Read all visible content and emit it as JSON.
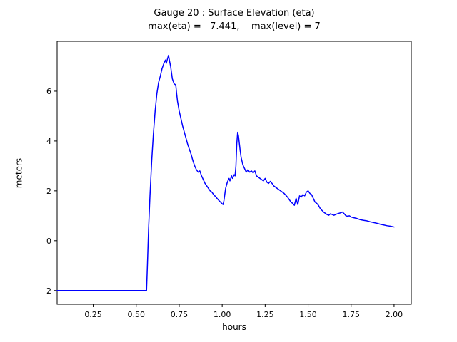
{
  "chart_data": {
    "type": "line",
    "title": "Gauge 20 : Surface Elevation (eta)",
    "subtitle": "max(eta) =   7.441,    max(level) = 7",
    "xlabel": "hours",
    "ylabel": "meters",
    "xlim": [
      0.04,
      2.1
    ],
    "ylim": [
      -2.55,
      8.0
    ],
    "xticks": [
      0.25,
      0.5,
      0.75,
      1.0,
      1.25,
      1.5,
      1.75,
      2.0
    ],
    "xtick_labels": [
      "0.25",
      "0.50",
      "0.75",
      "1.00",
      "1.25",
      "1.50",
      "1.75",
      "2.00"
    ],
    "yticks": [
      -2,
      0,
      2,
      4,
      6
    ],
    "ytick_labels": [
      "−2",
      "0",
      "2",
      "4",
      "6"
    ],
    "grid": false,
    "legend": "none",
    "line_color": "#0000ff",
    "axis_color": "#000000",
    "max_eta": 7.441,
    "max_level": 7,
    "series": [
      {
        "name": "eta",
        "points": [
          [
            0.04,
            -2.0
          ],
          [
            0.1,
            -2.0
          ],
          [
            0.2,
            -2.0
          ],
          [
            0.3,
            -2.0
          ],
          [
            0.4,
            -2.0
          ],
          [
            0.5,
            -2.0
          ],
          [
            0.55,
            -2.0
          ],
          [
            0.56,
            -2.0
          ],
          [
            0.565,
            -1.0
          ],
          [
            0.572,
            0.5
          ],
          [
            0.58,
            1.8
          ],
          [
            0.59,
            3.2
          ],
          [
            0.6,
            4.3
          ],
          [
            0.61,
            5.2
          ],
          [
            0.62,
            5.9
          ],
          [
            0.63,
            6.35
          ],
          [
            0.64,
            6.6
          ],
          [
            0.65,
            6.9
          ],
          [
            0.66,
            7.1
          ],
          [
            0.67,
            7.25
          ],
          [
            0.675,
            7.12
          ],
          [
            0.682,
            7.3
          ],
          [
            0.688,
            7.44
          ],
          [
            0.694,
            7.2
          ],
          [
            0.7,
            7.0
          ],
          [
            0.71,
            6.5
          ],
          [
            0.72,
            6.3
          ],
          [
            0.73,
            6.25
          ],
          [
            0.735,
            5.9
          ],
          [
            0.74,
            5.6
          ],
          [
            0.75,
            5.2
          ],
          [
            0.76,
            4.9
          ],
          [
            0.77,
            4.6
          ],
          [
            0.78,
            4.35
          ],
          [
            0.79,
            4.1
          ],
          [
            0.8,
            3.85
          ],
          [
            0.81,
            3.65
          ],
          [
            0.82,
            3.45
          ],
          [
            0.83,
            3.2
          ],
          [
            0.84,
            3.0
          ],
          [
            0.85,
            2.85
          ],
          [
            0.86,
            2.75
          ],
          [
            0.87,
            2.8
          ],
          [
            0.88,
            2.6
          ],
          [
            0.89,
            2.45
          ],
          [
            0.9,
            2.3
          ],
          [
            0.91,
            2.2
          ],
          [
            0.92,
            2.1
          ],
          [
            0.93,
            2.0
          ],
          [
            0.94,
            1.95
          ],
          [
            0.95,
            1.85
          ],
          [
            0.96,
            1.78
          ],
          [
            0.97,
            1.7
          ],
          [
            0.98,
            1.62
          ],
          [
            0.99,
            1.55
          ],
          [
            1.0,
            1.48
          ],
          [
            1.005,
            1.45
          ],
          [
            1.01,
            1.6
          ],
          [
            1.02,
            2.1
          ],
          [
            1.03,
            2.35
          ],
          [
            1.04,
            2.5
          ],
          [
            1.045,
            2.4
          ],
          [
            1.055,
            2.6
          ],
          [
            1.06,
            2.5
          ],
          [
            1.07,
            2.65
          ],
          [
            1.075,
            2.6
          ],
          [
            1.08,
            3.0
          ],
          [
            1.085,
            3.9
          ],
          [
            1.09,
            4.35
          ],
          [
            1.095,
            4.2
          ],
          [
            1.1,
            3.9
          ],
          [
            1.105,
            3.6
          ],
          [
            1.11,
            3.35
          ],
          [
            1.12,
            3.05
          ],
          [
            1.13,
            2.9
          ],
          [
            1.14,
            2.75
          ],
          [
            1.15,
            2.85
          ],
          [
            1.16,
            2.75
          ],
          [
            1.17,
            2.8
          ],
          [
            1.18,
            2.72
          ],
          [
            1.19,
            2.8
          ],
          [
            1.2,
            2.6
          ],
          [
            1.21,
            2.55
          ],
          [
            1.22,
            2.5
          ],
          [
            1.23,
            2.45
          ],
          [
            1.24,
            2.4
          ],
          [
            1.25,
            2.5
          ],
          [
            1.26,
            2.35
          ],
          [
            1.27,
            2.3
          ],
          [
            1.28,
            2.38
          ],
          [
            1.29,
            2.3
          ],
          [
            1.3,
            2.2
          ],
          [
            1.31,
            2.15
          ],
          [
            1.32,
            2.1
          ],
          [
            1.34,
            2.0
          ],
          [
            1.36,
            1.9
          ],
          [
            1.38,
            1.75
          ],
          [
            1.4,
            1.55
          ],
          [
            1.41,
            1.5
          ],
          [
            1.42,
            1.42
          ],
          [
            1.43,
            1.7
          ],
          [
            1.44,
            1.45
          ],
          [
            1.45,
            1.8
          ],
          [
            1.46,
            1.75
          ],
          [
            1.47,
            1.85
          ],
          [
            1.48,
            1.8
          ],
          [
            1.49,
            1.95
          ],
          [
            1.5,
            2.0
          ],
          [
            1.51,
            1.9
          ],
          [
            1.52,
            1.85
          ],
          [
            1.53,
            1.7
          ],
          [
            1.54,
            1.55
          ],
          [
            1.55,
            1.5
          ],
          [
            1.56,
            1.42
          ],
          [
            1.57,
            1.3
          ],
          [
            1.58,
            1.22
          ],
          [
            1.59,
            1.15
          ],
          [
            1.6,
            1.1
          ],
          [
            1.61,
            1.05
          ],
          [
            1.62,
            1.02
          ],
          [
            1.63,
            1.08
          ],
          [
            1.64,
            1.05
          ],
          [
            1.65,
            1.02
          ],
          [
            1.66,
            1.05
          ],
          [
            1.67,
            1.08
          ],
          [
            1.68,
            1.1
          ],
          [
            1.69,
            1.12
          ],
          [
            1.7,
            1.15
          ],
          [
            1.71,
            1.08
          ],
          [
            1.72,
            1.0
          ],
          [
            1.73,
            0.98
          ],
          [
            1.74,
            1.0
          ],
          [
            1.75,
            0.95
          ],
          [
            1.76,
            0.93
          ],
          [
            1.78,
            0.9
          ],
          [
            1.8,
            0.85
          ],
          [
            1.82,
            0.82
          ],
          [
            1.84,
            0.8
          ],
          [
            1.86,
            0.76
          ],
          [
            1.88,
            0.73
          ],
          [
            1.9,
            0.7
          ],
          [
            1.92,
            0.66
          ],
          [
            1.94,
            0.63
          ],
          [
            1.96,
            0.6
          ],
          [
            1.98,
            0.58
          ],
          [
            2.0,
            0.55
          ]
        ]
      }
    ]
  }
}
